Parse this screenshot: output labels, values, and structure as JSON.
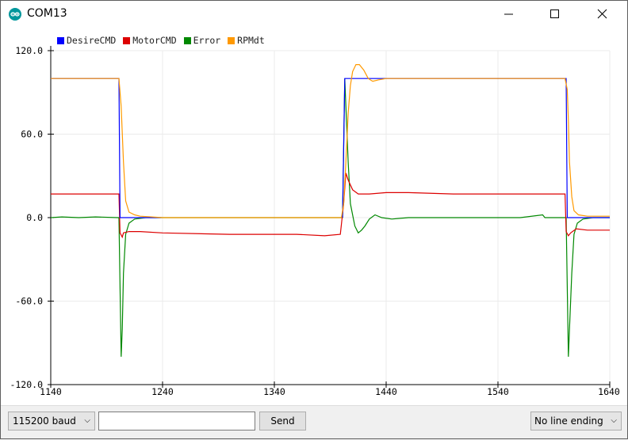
{
  "window": {
    "title": "COM13"
  },
  "bottom": {
    "baud": "115200 baud",
    "send_value": "",
    "send_label": "Send",
    "line_ending": "No line ending"
  },
  "chart_data": {
    "type": "line",
    "xlim": [
      1140,
      1640
    ],
    "ylim": [
      -120,
      120
    ],
    "x_ticks": [
      "1140",
      "1240",
      "1340",
      "1440",
      "1540",
      "1640"
    ],
    "y_ticks": [
      "120.0",
      "60.0",
      "0.0",
      "-60.0",
      "-120.0"
    ],
    "grid": true,
    "legend_position": "top-left",
    "series": [
      {
        "name": "DesireCMD",
        "color": "#0000ff",
        "points": [
          [
            1140,
            100
          ],
          [
            1201,
            100
          ],
          [
            1202,
            0
          ],
          [
            1238,
            0
          ],
          [
            1239,
            -1
          ]
        ],
        "segments": [
          [
            [
              1140,
              100
            ],
            [
              1201,
              100
            ],
            [
              1202,
              0
            ],
            [
              1239,
              0
            ]
          ],
          [
            [
              1401,
              0
            ],
            [
              1403,
              100
            ],
            [
              1601,
              100
            ],
            [
              1602,
              0
            ],
            [
              1640,
              0
            ]
          ]
        ]
      },
      {
        "name": "MotorCMD",
        "color": "#dd0000",
        "points": [
          [
            1140,
            17
          ],
          [
            1201,
            17
          ],
          [
            1202,
            -11
          ],
          [
            1204,
            -14
          ],
          [
            1205,
            -11
          ],
          [
            1210,
            -10
          ],
          [
            1220,
            -10
          ],
          [
            1240,
            -11
          ],
          [
            1300,
            -12
          ],
          [
            1360,
            -12
          ],
          [
            1385,
            -13
          ],
          [
            1399,
            -12
          ],
          [
            1402,
            10
          ],
          [
            1404,
            32
          ],
          [
            1406,
            27
          ],
          [
            1410,
            20
          ],
          [
            1415,
            17
          ],
          [
            1425,
            17
          ],
          [
            1440,
            18
          ],
          [
            1460,
            18
          ],
          [
            1500,
            17
          ],
          [
            1540,
            17
          ],
          [
            1580,
            17
          ],
          [
            1600,
            17
          ],
          [
            1601,
            -10
          ],
          [
            1603,
            -13
          ],
          [
            1605,
            -11
          ],
          [
            1610,
            -8
          ],
          [
            1620,
            -9
          ],
          [
            1640,
            -9
          ]
        ]
      },
      {
        "name": "Error",
        "color": "#008800",
        "points": [
          [
            1140,
            0
          ],
          [
            1150,
            0.5
          ],
          [
            1165,
            0
          ],
          [
            1180,
            0.5
          ],
          [
            1200,
            0
          ],
          [
            1201,
            0
          ],
          [
            1203,
            -100
          ],
          [
            1204,
            -80
          ],
          [
            1205,
            -40
          ],
          [
            1207,
            -12
          ],
          [
            1210,
            -4
          ],
          [
            1215,
            -1
          ],
          [
            1225,
            0
          ],
          [
            1240,
            0
          ],
          [
            1260,
            0
          ],
          [
            1300,
            0
          ],
          [
            1340,
            0
          ],
          [
            1380,
            0
          ],
          [
            1401,
            0
          ],
          [
            1403,
            100
          ],
          [
            1404,
            80
          ],
          [
            1406,
            40
          ],
          [
            1408,
            10
          ],
          [
            1412,
            -6
          ],
          [
            1415,
            -11
          ],
          [
            1418,
            -9
          ],
          [
            1421,
            -6
          ],
          [
            1425,
            -1
          ],
          [
            1430,
            2
          ],
          [
            1436,
            0
          ],
          [
            1445,
            -1
          ],
          [
            1460,
            0
          ],
          [
            1480,
            0
          ],
          [
            1520,
            0
          ],
          [
            1560,
            0
          ],
          [
            1580,
            2
          ],
          [
            1582,
            0
          ],
          [
            1601,
            0
          ],
          [
            1603,
            -100
          ],
          [
            1604,
            -80
          ],
          [
            1606,
            -40
          ],
          [
            1608,
            -12
          ],
          [
            1611,
            -4
          ],
          [
            1616,
            -1
          ],
          [
            1625,
            0
          ],
          [
            1640,
            0
          ]
        ]
      },
      {
        "name": "RPMdt",
        "color": "#ff9900",
        "points": [
          [
            1140,
            100
          ],
          [
            1201,
            100
          ],
          [
            1203,
            80
          ],
          [
            1205,
            40
          ],
          [
            1207,
            12
          ],
          [
            1210,
            4
          ],
          [
            1215,
            2
          ],
          [
            1220,
            1
          ],
          [
            1240,
            0
          ],
          [
            1300,
            0
          ],
          [
            1360,
            0
          ],
          [
            1400,
            0
          ],
          [
            1402,
            10
          ],
          [
            1404,
            40
          ],
          [
            1406,
            75
          ],
          [
            1408,
            95
          ],
          [
            1410,
            105
          ],
          [
            1413,
            110
          ],
          [
            1416,
            110
          ],
          [
            1420,
            106
          ],
          [
            1424,
            100
          ],
          [
            1428,
            98
          ],
          [
            1433,
            99
          ],
          [
            1440,
            100
          ],
          [
            1460,
            100
          ],
          [
            1500,
            100
          ],
          [
            1540,
            100
          ],
          [
            1580,
            100
          ],
          [
            1600,
            100
          ],
          [
            1602,
            92
          ],
          [
            1603,
            70
          ],
          [
            1604,
            40
          ],
          [
            1606,
            15
          ],
          [
            1608,
            5
          ],
          [
            1612,
            2
          ],
          [
            1620,
            1
          ],
          [
            1640,
            1
          ]
        ]
      }
    ]
  }
}
